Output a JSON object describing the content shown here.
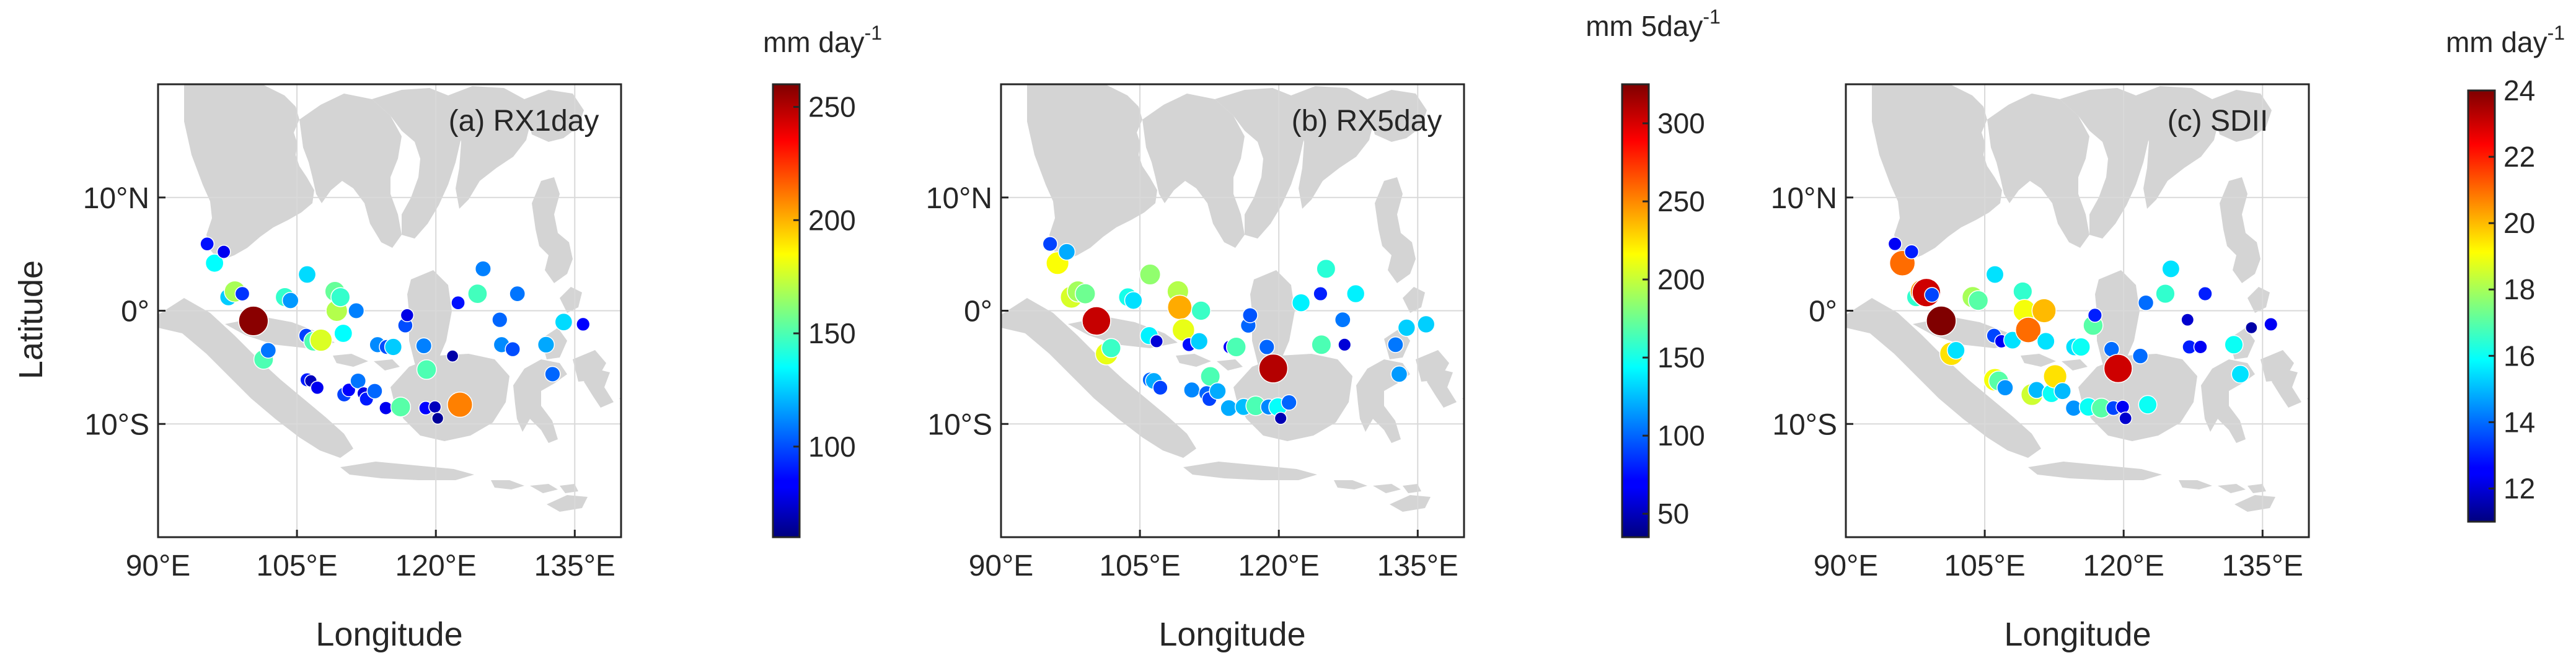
{
  "figure": {
    "ylabel": "Latitude",
    "xlabel": "Longitude"
  },
  "colors": {
    "land": "#d4d4d4",
    "grid": "#d9d9d9",
    "axis": "#262626",
    "marker_edge": "#ffffff"
  },
  "chart_data": [
    {
      "type": "scatter",
      "panel_label": "(a) RX1day",
      "colorbar_label": "mm day",
      "colorbar_superscript": "-1",
      "xlim": [
        90,
        140
      ],
      "ylim": [
        -20,
        20
      ],
      "xticks": [
        90,
        105,
        120,
        135
      ],
      "xtick_labels": [
        "90°E",
        "105°E",
        "120°E",
        "135°E"
      ],
      "yticks": [
        -10,
        0,
        10
      ],
      "ytick_labels": [
        "10°S",
        "0°",
        "10°N"
      ],
      "show_ytick_labels": true,
      "clim": [
        60,
        260
      ],
      "cbar_ticks": [
        100,
        150,
        200,
        250
      ],
      "points": [
        {
          "lon": 95.3,
          "lat": 5.9,
          "value": 88
        },
        {
          "lon": 96.1,
          "lat": 4.2,
          "value": 135
        },
        {
          "lon": 97.1,
          "lat": 5.2,
          "value": 82
        },
        {
          "lon": 97.6,
          "lat": 1.2,
          "value": 125
        },
        {
          "lon": 98.3,
          "lat": 1.7,
          "value": 168
        },
        {
          "lon": 99.1,
          "lat": 1.5,
          "value": 95
        },
        {
          "lon": 100.3,
          "lat": -0.9,
          "value": 258
        },
        {
          "lon": 101.4,
          "lat": -4.3,
          "value": 150
        },
        {
          "lon": 101.9,
          "lat": -3.5,
          "value": 108
        },
        {
          "lon": 103.7,
          "lat": 1.2,
          "value": 145
        },
        {
          "lon": 104.3,
          "lat": 0.9,
          "value": 115
        },
        {
          "lon": 106.1,
          "lat": 3.2,
          "value": 128
        },
        {
          "lon": 106.0,
          "lat": -2.2,
          "value": 98
        },
        {
          "lon": 106.1,
          "lat": -6.1,
          "value": 90
        },
        {
          "lon": 106.5,
          "lat": -6.2,
          "value": 72
        },
        {
          "lon": 106.8,
          "lat": -2.7,
          "value": 150
        },
        {
          "lon": 107.2,
          "lat": -6.8,
          "value": 82
        },
        {
          "lon": 107.6,
          "lat": -2.6,
          "value": 178
        },
        {
          "lon": 109.1,
          "lat": 1.7,
          "value": 155
        },
        {
          "lon": 109.3,
          "lat": 0.0,
          "value": 170
        },
        {
          "lon": 109.7,
          "lat": 1.2,
          "value": 145
        },
        {
          "lon": 110.0,
          "lat": -2.0,
          "value": 135
        },
        {
          "lon": 110.1,
          "lat": -7.4,
          "value": 98
        },
        {
          "lon": 110.6,
          "lat": -7.0,
          "value": 85
        },
        {
          "lon": 111.4,
          "lat": 0.0,
          "value": 110
        },
        {
          "lon": 111.6,
          "lat": -6.2,
          "value": 108
        },
        {
          "lon": 112.2,
          "lat": -7.3,
          "value": 80
        },
        {
          "lon": 112.5,
          "lat": -7.8,
          "value": 90
        },
        {
          "lon": 113.4,
          "lat": -7.1,
          "value": 105
        },
        {
          "lon": 113.7,
          "lat": -3.0,
          "value": 112
        },
        {
          "lon": 114.7,
          "lat": -3.2,
          "value": 100
        },
        {
          "lon": 114.6,
          "lat": -8.6,
          "value": 82
        },
        {
          "lon": 115.4,
          "lat": -3.2,
          "value": 125
        },
        {
          "lon": 116.2,
          "lat": -8.5,
          "value": 152
        },
        {
          "lon": 116.7,
          "lat": -1.3,
          "value": 100
        },
        {
          "lon": 116.9,
          "lat": -0.4,
          "value": 80
        },
        {
          "lon": 118.7,
          "lat": -3.1,
          "value": 110
        },
        {
          "lon": 119.0,
          "lat": -5.2,
          "value": 150
        },
        {
          "lon": 118.9,
          "lat": -8.6,
          "value": 85
        },
        {
          "lon": 119.9,
          "lat": -8.5,
          "value": 72
        },
        {
          "lon": 120.2,
          "lat": -9.5,
          "value": 65
        },
        {
          "lon": 121.8,
          "lat": -4.0,
          "value": 68
        },
        {
          "lon": 122.4,
          "lat": 0.7,
          "value": 88
        },
        {
          "lon": 122.6,
          "lat": -8.3,
          "value": 210
        },
        {
          "lon": 124.5,
          "lat": 1.5,
          "value": 148
        },
        {
          "lon": 125.1,
          "lat": 3.7,
          "value": 110
        },
        {
          "lon": 126.9,
          "lat": -0.8,
          "value": 105
        },
        {
          "lon": 127.1,
          "lat": -3.0,
          "value": 112
        },
        {
          "lon": 128.3,
          "lat": -3.4,
          "value": 100
        },
        {
          "lon": 128.8,
          "lat": 1.5,
          "value": 108
        },
        {
          "lon": 131.9,
          "lat": -3.0,
          "value": 118
        },
        {
          "lon": 132.6,
          "lat": -5.6,
          "value": 105
        },
        {
          "lon": 133.8,
          "lat": -1.0,
          "value": 128
        },
        {
          "lon": 135.9,
          "lat": -1.2,
          "value": 85
        }
      ]
    },
    {
      "type": "scatter",
      "panel_label": "(b) RX5day",
      "colorbar_label": "mm 5day",
      "colorbar_superscript": "-1",
      "xlim": [
        90,
        140
      ],
      "ylim": [
        -20,
        20
      ],
      "xticks": [
        90,
        105,
        120,
        135
      ],
      "xtick_labels": [
        "90°E",
        "105°E",
        "120°E",
        "135°E"
      ],
      "yticks": [
        -10,
        0,
        10
      ],
      "ytick_labels": [
        "10°S",
        "0°",
        "10°N"
      ],
      "show_ytick_labels": true,
      "clim": [
        35,
        325
      ],
      "cbar_ticks": [
        50,
        100,
        150,
        200,
        250,
        300
      ],
      "points": [
        {
          "lon": 95.3,
          "lat": 5.9,
          "value": 90
        },
        {
          "lon": 96.1,
          "lat": 4.2,
          "value": 215
        },
        {
          "lon": 97.1,
          "lat": 5.2,
          "value": 120
        },
        {
          "lon": 97.6,
          "lat": 1.2,
          "value": 205
        },
        {
          "lon": 98.3,
          "lat": 1.7,
          "value": 190
        },
        {
          "lon": 99.1,
          "lat": 1.5,
          "value": 175
        },
        {
          "lon": 100.3,
          "lat": -0.9,
          "value": 305
        },
        {
          "lon": 101.4,
          "lat": -3.8,
          "value": 210
        },
        {
          "lon": 101.9,
          "lat": -3.3,
          "value": 160
        },
        {
          "lon": 103.7,
          "lat": 1.2,
          "value": 150
        },
        {
          "lon": 104.3,
          "lat": 0.9,
          "value": 135
        },
        {
          "lon": 106.1,
          "lat": 3.2,
          "value": 185
        },
        {
          "lon": 106.0,
          "lat": -2.2,
          "value": 140
        },
        {
          "lon": 106.1,
          "lat": -6.1,
          "value": 100
        },
        {
          "lon": 106.5,
          "lat": -6.2,
          "value": 120
        },
        {
          "lon": 106.8,
          "lat": -2.7,
          "value": 60
        },
        {
          "lon": 107.2,
          "lat": -6.8,
          "value": 90
        },
        {
          "lon": 109.1,
          "lat": 1.7,
          "value": 195
        },
        {
          "lon": 109.3,
          "lat": 0.3,
          "value": 240
        },
        {
          "lon": 109.7,
          "lat": -1.7,
          "value": 210
        },
        {
          "lon": 110.3,
          "lat": -3.0,
          "value": 75
        },
        {
          "lon": 110.6,
          "lat": -7.0,
          "value": 110
        },
        {
          "lon": 111.6,
          "lat": 0.0,
          "value": 160
        },
        {
          "lon": 111.4,
          "lat": -2.7,
          "value": 130
        },
        {
          "lon": 112.2,
          "lat": -7.3,
          "value": 100
        },
        {
          "lon": 112.5,
          "lat": -7.8,
          "value": 90
        },
        {
          "lon": 112.6,
          "lat": -5.8,
          "value": 165
        },
        {
          "lon": 113.4,
          "lat": -7.1,
          "value": 120
        },
        {
          "lon": 114.7,
          "lat": -3.2,
          "value": 70
        },
        {
          "lon": 115.4,
          "lat": -3.2,
          "value": 165
        },
        {
          "lon": 114.6,
          "lat": -8.6,
          "value": 120
        },
        {
          "lon": 116.2,
          "lat": -8.5,
          "value": 125
        },
        {
          "lon": 116.7,
          "lat": -1.3,
          "value": 100
        },
        {
          "lon": 116.9,
          "lat": -0.4,
          "value": 95
        },
        {
          "lon": 117.5,
          "lat": -8.4,
          "value": 165
        },
        {
          "lon": 118.7,
          "lat": -3.2,
          "value": 100
        },
        {
          "lon": 118.9,
          "lat": -8.5,
          "value": 110
        },
        {
          "lon": 119.4,
          "lat": -5.1,
          "value": 310
        },
        {
          "lon": 119.9,
          "lat": -8.5,
          "value": 145
        },
        {
          "lon": 120.2,
          "lat": -9.5,
          "value": 50
        },
        {
          "lon": 121.1,
          "lat": -8.1,
          "value": 100
        },
        {
          "lon": 122.4,
          "lat": 0.7,
          "value": 140
        },
        {
          "lon": 124.5,
          "lat": 1.5,
          "value": 80
        },
        {
          "lon": 125.1,
          "lat": 3.7,
          "value": 155
        },
        {
          "lon": 124.6,
          "lat": -3.0,
          "value": 165
        },
        {
          "lon": 126.9,
          "lat": -0.8,
          "value": 105
        },
        {
          "lon": 127.1,
          "lat": -3.0,
          "value": 60
        },
        {
          "lon": 128.3,
          "lat": 1.5,
          "value": 140
        },
        {
          "lon": 132.6,
          "lat": -3.0,
          "value": 105
        },
        {
          "lon": 133.0,
          "lat": -5.6,
          "value": 115
        },
        {
          "lon": 133.8,
          "lat": -1.5,
          "value": 130
        },
        {
          "lon": 135.9,
          "lat": -1.2,
          "value": 130
        }
      ]
    },
    {
      "type": "scatter",
      "panel_label": "(c) SDII",
      "colorbar_label": "mm day",
      "colorbar_superscript": "-1",
      "xlim": [
        90,
        140
      ],
      "ylim": [
        -20,
        20
      ],
      "xticks": [
        90,
        105,
        120,
        135
      ],
      "xtick_labels": [
        "90°E",
        "105°E",
        "120°E",
        "135°E"
      ],
      "yticks": [
        -10,
        0,
        10
      ],
      "ytick_labels": [
        "10°S",
        "0°",
        "10°N"
      ],
      "show_ytick_labels": true,
      "clim": [
        11,
        24
      ],
      "cbar_ticks": [
        12,
        14,
        16,
        18,
        20,
        22,
        24
      ],
      "points": [
        {
          "lon": 95.3,
          "lat": 5.9,
          "value": 12.5
        },
        {
          "lon": 96.1,
          "lat": 4.2,
          "value": 21
        },
        {
          "lon": 97.1,
          "lat": 5.2,
          "value": 13
        },
        {
          "lon": 97.6,
          "lat": 1.2,
          "value": 16.5
        },
        {
          "lon": 98.3,
          "lat": 1.7,
          "value": 20.5
        },
        {
          "lon": 98.7,
          "lat": 1.6,
          "value": 23
        },
        {
          "lon": 99.3,
          "lat": 1.4,
          "value": 13.5
        },
        {
          "lon": 100.3,
          "lat": -0.9,
          "value": 24
        },
        {
          "lon": 101.4,
          "lat": -3.8,
          "value": 19.5
        },
        {
          "lon": 101.9,
          "lat": -3.5,
          "value": 15.5
        },
        {
          "lon": 103.7,
          "lat": 1.2,
          "value": 18
        },
        {
          "lon": 104.3,
          "lat": 0.9,
          "value": 17
        },
        {
          "lon": 106.1,
          "lat": 3.2,
          "value": 15.5
        },
        {
          "lon": 106.0,
          "lat": -2.2,
          "value": 13.5
        },
        {
          "lon": 106.1,
          "lat": -6.1,
          "value": 19
        },
        {
          "lon": 106.5,
          "lat": -6.2,
          "value": 17
        },
        {
          "lon": 106.8,
          "lat": -2.7,
          "value": 12.5
        },
        {
          "lon": 107.2,
          "lat": -6.8,
          "value": 14.5
        },
        {
          "lon": 108.0,
          "lat": -2.6,
          "value": 15.5
        },
        {
          "lon": 109.1,
          "lat": 1.7,
          "value": 16.5
        },
        {
          "lon": 109.3,
          "lat": 0.0,
          "value": 19
        },
        {
          "lon": 109.7,
          "lat": -1.7,
          "value": 21
        },
        {
          "lon": 110.1,
          "lat": -7.4,
          "value": 18.5
        },
        {
          "lon": 110.6,
          "lat": -7.0,
          "value": 15
        },
        {
          "lon": 111.4,
          "lat": 0.0,
          "value": 20
        },
        {
          "lon": 111.6,
          "lat": -2.7,
          "value": 15.5
        },
        {
          "lon": 112.2,
          "lat": -7.3,
          "value": 16
        },
        {
          "lon": 112.6,
          "lat": -5.8,
          "value": 19.5
        },
        {
          "lon": 113.4,
          "lat": -7.1,
          "value": 15
        },
        {
          "lon": 114.7,
          "lat": -3.2,
          "value": 15.5
        },
        {
          "lon": 114.6,
          "lat": -8.6,
          "value": 14.5
        },
        {
          "lon": 115.4,
          "lat": -3.2,
          "value": 16
        },
        {
          "lon": 116.2,
          "lat": -8.5,
          "value": 16
        },
        {
          "lon": 116.7,
          "lat": -1.3,
          "value": 17
        },
        {
          "lon": 116.9,
          "lat": -0.4,
          "value": 13
        },
        {
          "lon": 117.6,
          "lat": -8.6,
          "value": 17
        },
        {
          "lon": 118.7,
          "lat": -3.4,
          "value": 14
        },
        {
          "lon": 118.9,
          "lat": -8.6,
          "value": 13.5
        },
        {
          "lon": 119.4,
          "lat": -5.1,
          "value": 23
        },
        {
          "lon": 119.9,
          "lat": -8.5,
          "value": 12.5
        },
        {
          "lon": 120.2,
          "lat": -9.5,
          "value": 12
        },
        {
          "lon": 121.8,
          "lat": -4.0,
          "value": 14
        },
        {
          "lon": 122.4,
          "lat": 0.7,
          "value": 14
        },
        {
          "lon": 122.6,
          "lat": -8.3,
          "value": 16
        },
        {
          "lon": 124.5,
          "lat": 1.5,
          "value": 16.5
        },
        {
          "lon": 125.1,
          "lat": 3.7,
          "value": 15.5
        },
        {
          "lon": 126.9,
          "lat": -0.8,
          "value": 12
        },
        {
          "lon": 127.1,
          "lat": -3.2,
          "value": 13
        },
        {
          "lon": 128.3,
          "lat": -3.2,
          "value": 12.5
        },
        {
          "lon": 128.8,
          "lat": 1.5,
          "value": 13
        },
        {
          "lon": 131.9,
          "lat": -3.0,
          "value": 16
        },
        {
          "lon": 132.6,
          "lat": -5.6,
          "value": 15.5
        },
        {
          "lon": 133.8,
          "lat": -1.5,
          "value": 11.5
        },
        {
          "lon": 135.9,
          "lat": -1.2,
          "value": 12.5
        }
      ]
    }
  ]
}
